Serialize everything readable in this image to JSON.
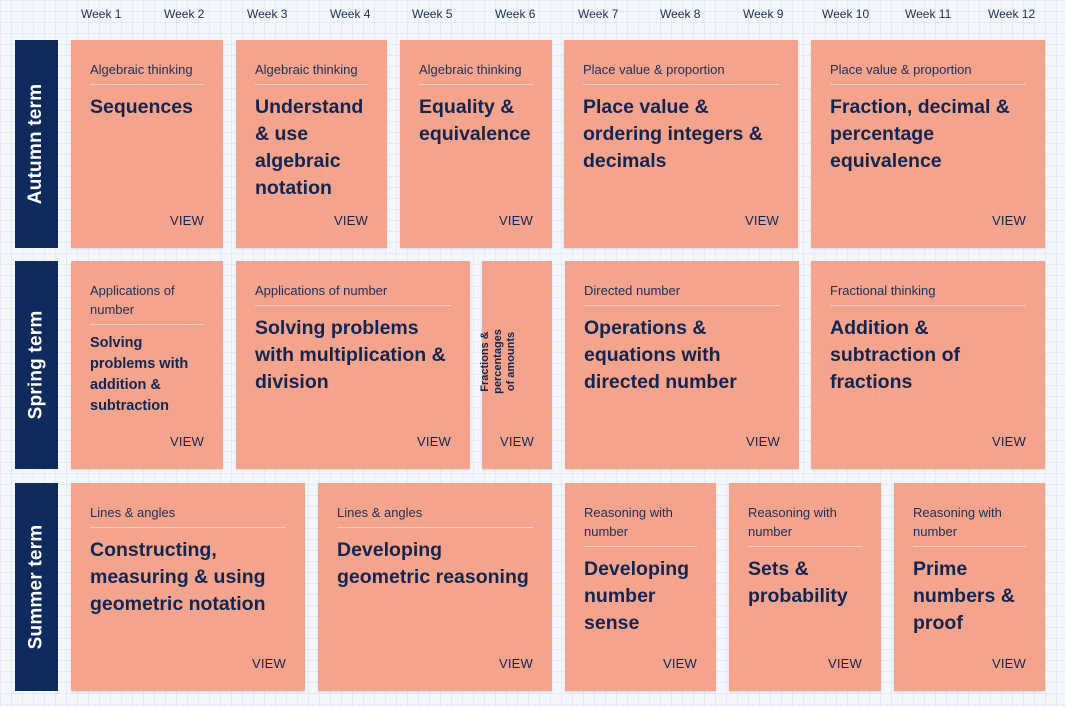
{
  "weeks": [
    "Week 1",
    "Week 2",
    "Week 3",
    "Week 4",
    "Week 5",
    "Week 6",
    "Week 7",
    "Week 8",
    "Week 9",
    "Week 10",
    "Week 11",
    "Week 12"
  ],
  "terms": [
    "Autumn term",
    "Spring term",
    "Summer term"
  ],
  "view_label": "VIEW",
  "colors": {
    "card": "#f4a38d",
    "term_bar": "#0f2a5c",
    "text": "#13254f"
  },
  "cards": [
    {
      "category": "Algebraic thinking",
      "title": "Sequences"
    },
    {
      "category": "Algebraic thinking",
      "title": "Understand & use algebraic notation"
    },
    {
      "category": "Algebraic thinking",
      "title": "Equality & equivalence"
    },
    {
      "category": "Place value & proportion",
      "title": "Place value & ordering integers & decimals"
    },
    {
      "category": "Place value & proportion",
      "title": "Fraction, decimal & percentage equivalence"
    },
    {
      "category": "Applications of number",
      "title": "Solving problems with addition & subtraction"
    },
    {
      "category": "Applications of number",
      "title": "Solving problems with multiplication & division"
    },
    {
      "category": "",
      "title": "Fractions & percentages of amounts"
    },
    {
      "category": "Directed number",
      "title": "Operations & equations with directed number"
    },
    {
      "category": "Fractional thinking",
      "title": "Addition & subtraction of fractions"
    },
    {
      "category": "Lines & angles",
      "title": "Constructing, measuring & using geometric notation"
    },
    {
      "category": "Lines & angles",
      "title": "Developing geometric reasoning"
    },
    {
      "category": "Reasoning with number",
      "title": "Developing number sense"
    },
    {
      "category": "Reasoning with number",
      "title": "Sets & probability"
    },
    {
      "category": "Reasoning with number",
      "title": "Prime numbers & proof"
    }
  ]
}
